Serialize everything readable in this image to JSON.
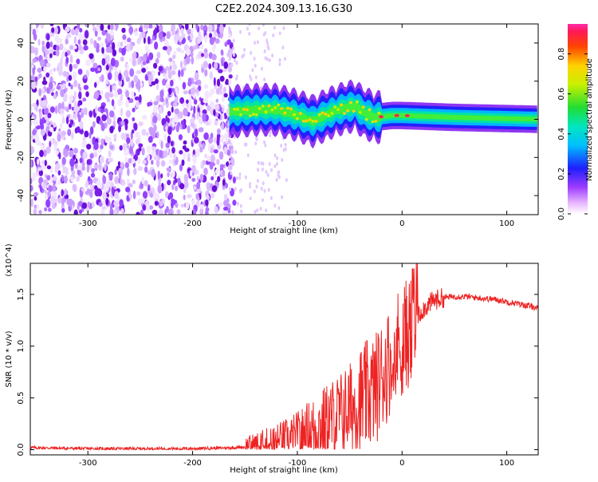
{
  "title": "C2E2.2024.309.13.16.G30",
  "chart_data": [
    {
      "type": "heatmap",
      "xlabel": "Height of straight line (km)",
      "ylabel": "Frequency (Hz)",
      "xlim": [
        -355,
        130
      ],
      "ylim": [
        -50,
        50
      ],
      "xticks": [
        -300,
        -200,
        -100,
        0,
        100
      ],
      "yticks": [
        -40,
        -20,
        0,
        20,
        40
      ],
      "colorbar": {
        "label": "Normalized spectral amplitude",
        "range": [
          0.0,
          0.95
        ],
        "ticks": [
          "0.0",
          "0.2",
          "0.4",
          "0.6",
          "0.8"
        ]
      },
      "signal_band": {
        "x_start": -165,
        "x_end": 130,
        "center_frequency_hz": [
          [
            -165,
            4
          ],
          [
            -140,
            5
          ],
          [
            -120,
            5
          ],
          [
            -100,
            2
          ],
          [
            -85,
            -1
          ],
          [
            -70,
            3
          ],
          [
            -55,
            6
          ],
          [
            -45,
            7
          ],
          [
            -35,
            3
          ],
          [
            -25,
            1
          ],
          [
            -10,
            2
          ],
          [
            0,
            2
          ],
          [
            50,
            1
          ],
          [
            130,
            0
          ]
        ],
        "peak_amplitude_x": [
          -20,
          -5,
          5
        ]
      },
      "noise_region": {
        "x_start": -355,
        "x_end": -160
      }
    },
    {
      "type": "line",
      "xlabel": "Height of straight line (km)",
      "ylabel": "SNR (10 * v/v)",
      "y_multiplier": "(x10^4)",
      "xlim": [
        -355,
        130
      ],
      "ylim": [
        -0.05,
        1.8
      ],
      "xticks": [
        -300,
        -200,
        -100,
        0,
        100
      ],
      "yticks": [
        0.0,
        0.5,
        1.0,
        1.5
      ],
      "ytick_labels": [
        "0.0",
        "0.5",
        "1.0",
        "1.5"
      ],
      "series": [
        {
          "color": "#ee2222",
          "x": [
            -355,
            -300,
            -250,
            -200,
            -160,
            -130,
            -110,
            -100,
            -90,
            -80,
            -70,
            -60,
            -50,
            -40,
            -30,
            -25,
            -20,
            -15,
            -10,
            -5,
            0,
            5,
            10,
            15,
            20,
            30,
            40,
            50,
            60,
            70,
            80,
            90,
            100,
            110,
            120,
            130
          ],
          "y": [
            0.02,
            0.01,
            0.01,
            0.01,
            0.02,
            0.04,
            0.07,
            0.1,
            0.16,
            0.22,
            0.28,
            0.34,
            0.4,
            0.46,
            0.55,
            0.6,
            0.7,
            0.8,
            0.9,
            1.0,
            1.05,
            1.12,
            1.2,
            1.28,
            1.36,
            1.44,
            1.47,
            1.48,
            1.48,
            1.47,
            1.46,
            1.45,
            1.43,
            1.41,
            1.39,
            1.37
          ]
        }
      ]
    }
  ]
}
